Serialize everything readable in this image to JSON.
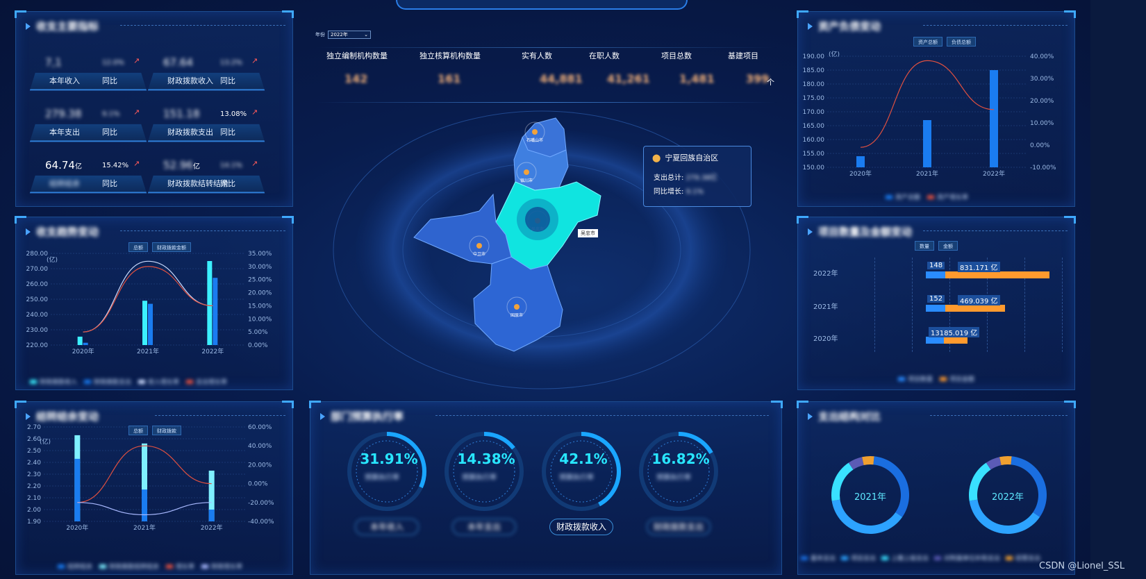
{
  "top_title": "",
  "watermark": "CSDN @Lionel_SSL",
  "year_filter": {
    "label": "年份",
    "value": "2022年"
  },
  "header_stats": [
    {
      "label": "独立编制机构数量",
      "value": "142"
    },
    {
      "label": "独立核算机构数量",
      "value": "161"
    },
    {
      "label": "实有人数",
      "value": "44,881"
    },
    {
      "label": "在职人数",
      "value": "41,261"
    },
    {
      "label": "项目总数",
      "value": "1,481"
    },
    {
      "label": "基建项目",
      "value": "399"
    }
  ],
  "header_extra": "个",
  "panel_income": {
    "title": "收支主要指标",
    "cards": [
      {
        "value": "7,1",
        "unit": "",
        "pct": "12.0%",
        "label": "本年收入",
        "label2": "同比"
      },
      {
        "value": "67.64",
        "unit": "",
        "pct": "13.2%",
        "label": "财政拨款收入",
        "label2": "同比"
      },
      {
        "value": "279.38",
        "unit": "",
        "pct": "9.1%",
        "label": "本年支出",
        "label2": "同比"
      },
      {
        "value": "151.18",
        "unit": "",
        "pct": "13.08%",
        "label": "财政拨款支出",
        "label2": "同比"
      },
      {
        "value": "64.74",
        "unit": "亿",
        "pct": "15.42%",
        "label": "结转结余",
        "label2": "同比"
      },
      {
        "value": "52.96",
        "unit": "亿",
        "pct": "14.1%",
        "label": "财政拨款结转结余",
        "label2": "同比"
      }
    ]
  },
  "panel_trend1": {
    "title": "收支趋势变动",
    "buttons": [
      "总额",
      "财政拨款金额"
    ],
    "unit": "(亿)",
    "yticks": [
      "280.00",
      "270.00",
      "260.00",
      "250.00",
      "240.00",
      "230.00",
      "220.00"
    ],
    "y2ticks": [
      "35.00%",
      "30.00%",
      "25.00%",
      "20.00%",
      "15.00%",
      "10.00%",
      "5.00%",
      "0.00%"
    ],
    "categories": [
      "2020年",
      "2021年",
      "2022年"
    ],
    "legend": [
      "财政拨款收入",
      "财政拨款支出",
      "收入增长率",
      "支出增长率"
    ]
  },
  "panel_trend2": {
    "title": "结转结余变动",
    "buttons": [
      "总额",
      "财政拨款"
    ],
    "unit": "(亿)",
    "yticks": [
      "2.70",
      "2.60",
      "2.50",
      "2.40",
      "2.30",
      "2.20",
      "2.10",
      "2.00",
      "1.90"
    ],
    "y2ticks": [
      "60.00%",
      "40.00%",
      "20.00%",
      "0.00%",
      "-20.00%",
      "-40.00%"
    ],
    "categories": [
      "2020年",
      "2021年",
      "2022年"
    ],
    "legend": [
      "结转结余",
      "财政拨款结转结余",
      "增长率",
      "财政增长率"
    ]
  },
  "map": {
    "popup_title": "宁夏回族自治区",
    "popup_rows": [
      {
        "label": "支出总计:",
        "value": "279.38亿"
      },
      {
        "label": "同比增长:",
        "value": "9.1%"
      }
    ],
    "cities": [
      "石嘴山市",
      "银川市",
      "吴忠市",
      "中卫市",
      "固原市"
    ],
    "tag": "吴忠市"
  },
  "panel_asset": {
    "title": "资产负债变动",
    "buttons": [
      "资产总额",
      "负债总额"
    ],
    "unit": "(亿)",
    "yticks": [
      "190.00",
      "185.00",
      "180.00",
      "175.00",
      "170.00",
      "165.00",
      "160.00",
      "155.00",
      "150.00"
    ],
    "y2ticks": [
      "40.00%",
      "30.00%",
      "20.00%",
      "10.00%",
      "0.00%",
      "-10.00%"
    ],
    "categories": [
      "2020年",
      "2021年",
      "2022年"
    ],
    "legend": [
      "资产总额",
      "资产增长率"
    ]
  },
  "panel_project": {
    "title": "项目数量及金额变动",
    "buttons": [
      "数量",
      "金额"
    ],
    "rows": [
      {
        "year": "2022年",
        "count": "148",
        "amount": "831.171 亿"
      },
      {
        "year": "2021年",
        "count": "152",
        "amount": "469.039 亿"
      },
      {
        "year": "2020年",
        "count": "",
        "amount": "13185.019 亿"
      }
    ],
    "legend": [
      "项目数量",
      "项目金额"
    ]
  },
  "panel_rate": {
    "title": "部门预算执行率",
    "gauges": [
      {
        "value": "31.91%",
        "label": "预算执行率",
        "pill": "本年收入"
      },
      {
        "value": "14.38%",
        "label": "预算执行率",
        "pill": "本年支出"
      },
      {
        "value": "42.1%",
        "label": "预算执行率",
        "pill": "财政拨款收入"
      },
      {
        "value": "16.82%",
        "label": "预算执行率",
        "pill": "财政拨款支出"
      }
    ]
  },
  "panel_struct": {
    "title": "支出结构对比",
    "donuts": [
      {
        "label": "2021年"
      },
      {
        "label": "2022年"
      }
    ],
    "legend": [
      "基本支出",
      "项目支出",
      "上缴上级支出",
      "对附属单位补助支出",
      "经营支出"
    ]
  },
  "chart_data": [
    {
      "type": "bar",
      "title": "收支趋势变动",
      "categories": [
        "2020年",
        "2021年",
        "2022年"
      ],
      "ylim": [
        220,
        280
      ],
      "series": [
        {
          "values": [
            225.5,
            249,
            275
          ]
        },
        {
          "values": [
            221.5,
            247,
            264
          ]
        },
        {
          "values": [
            5,
            32,
            15
          ]
        },
        {
          "values": [
            5,
            30,
            15
          ]
        }
      ]
    },
    {
      "type": "bar",
      "title": "结转结余变动",
      "categories": [
        "2020年",
        "2021年",
        "2022年"
      ],
      "ylim": [
        1.9,
        2.7
      ],
      "series": [
        {
          "values": [
            2.63,
            2.56,
            2.33
          ]
        },
        {
          "values": [
            2.43,
            2.17,
            2.0
          ]
        },
        {
          "values": [
            -20,
            40,
            0
          ]
        },
        {
          "values": [
            -20,
            -33,
            -20
          ]
        }
      ]
    },
    {
      "type": "bar",
      "title": "资产负债变动",
      "categories": [
        "2020年",
        "2021年",
        "2022年"
      ],
      "ylim": [
        150,
        190
      ],
      "series": [
        {
          "values": [
            154,
            167,
            185
          ]
        },
        {
          "values": [
            -1,
            38,
            16
          ]
        }
      ]
    }
  ]
}
